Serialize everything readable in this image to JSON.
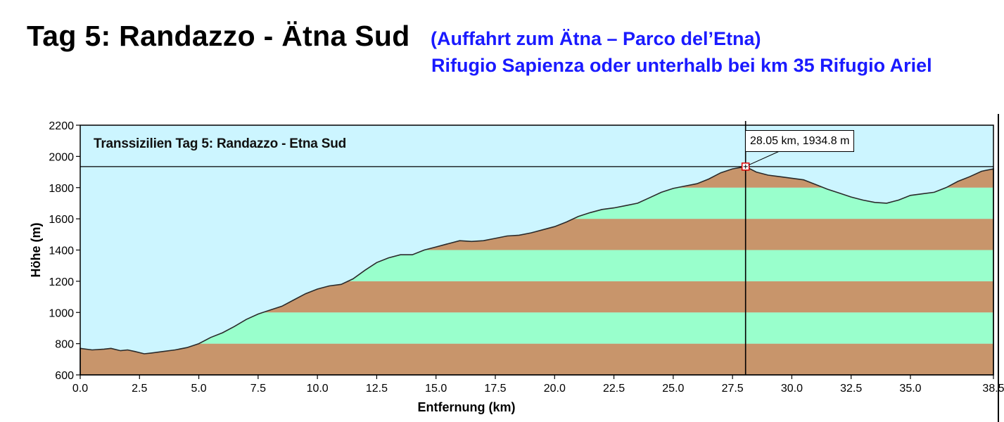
{
  "page": {
    "title": "Tag 5: Randazzo - Ätna Sud",
    "subtitle_line1": "(Auffahrt zum Ätna – Parco del’Etna)",
    "subtitle_line2": "Rifugio Sapienza oder unterhalb bei km 35 Rifugio Ariel"
  },
  "chart_data": {
    "type": "area",
    "title": "Transsizilien Tag 5: Randazzo - Etna Sud",
    "xlabel": "Entfernung  (km)",
    "ylabel": "Höhe (m)",
    "xlim": [
      0,
      38.5
    ],
    "ylim": [
      600,
      2200
    ],
    "x_ticks": [
      0,
      2.5,
      5,
      7.5,
      10,
      12.5,
      15,
      17.5,
      20,
      22.5,
      25,
      27.5,
      30,
      32.5,
      35,
      38.5
    ],
    "x_tick_labels": [
      "0.0",
      "2.5",
      "5.0",
      "7.5",
      "10.0",
      "12.5",
      "15.0",
      "17.5",
      "20.0",
      "22.5",
      "25.0",
      "27.5",
      "30.0",
      "32.5",
      "35.0",
      "38.5"
    ],
    "y_ticks": [
      600,
      800,
      1000,
      1200,
      1400,
      1600,
      1800,
      2000,
      2200
    ],
    "y_tick_labels": [
      "600",
      "800",
      "1000",
      "1200",
      "1400",
      "1600",
      "1800",
      "2000",
      "2200"
    ],
    "band_colors": [
      "#c8956b",
      "#99ffcc"
    ],
    "sky_color": "#ccf5ff",
    "series": [
      {
        "x": [
          0,
          0.5,
          1.0,
          1.3,
          1.7,
          2.0,
          2.3,
          2.7,
          3.0,
          3.5,
          4.0,
          4.5,
          5.0,
          5.5,
          6.0,
          6.5,
          7.0,
          7.5,
          8.0,
          8.5,
          9.0,
          9.5,
          10.0,
          10.5,
          11.0,
          11.5,
          12.0,
          12.5,
          13.0,
          13.5,
          14.0,
          14.5,
          15.0,
          15.5,
          16.0,
          16.5,
          17.0,
          17.5,
          18.0,
          18.5,
          19.0,
          19.5,
          20.0,
          20.5,
          21.0,
          21.5,
          22.0,
          22.5,
          23.0,
          23.5,
          24.0,
          24.5,
          25.0,
          25.5,
          26.0,
          26.5,
          27.0,
          27.5,
          28.05,
          28.5,
          29.0,
          29.5,
          30.0,
          30.5,
          31.0,
          31.5,
          32.0,
          32.5,
          33.0,
          33.5,
          34.0,
          34.5,
          35.0,
          35.5,
          36.0,
          36.5,
          37.0,
          37.5,
          38.0,
          38.5
        ],
        "y": [
          770,
          760,
          765,
          770,
          755,
          760,
          750,
          735,
          740,
          750,
          760,
          775,
          800,
          840,
          870,
          910,
          955,
          990,
          1015,
          1040,
          1080,
          1120,
          1150,
          1170,
          1180,
          1215,
          1270,
          1320,
          1350,
          1370,
          1370,
          1400,
          1420,
          1440,
          1460,
          1455,
          1460,
          1475,
          1490,
          1495,
          1510,
          1530,
          1550,
          1580,
          1615,
          1640,
          1660,
          1670,
          1685,
          1700,
          1735,
          1770,
          1795,
          1810,
          1825,
          1855,
          1895,
          1920,
          1934.8,
          1900,
          1880,
          1870,
          1860,
          1850,
          1820,
          1790,
          1765,
          1740,
          1720,
          1705,
          1700,
          1720,
          1750,
          1760,
          1770,
          1800,
          1840,
          1870,
          1905,
          1920
        ]
      }
    ],
    "marker": {
      "x": 28.05,
      "y": 1934.8,
      "label": "28.05 km, 1934.8 m"
    }
  }
}
